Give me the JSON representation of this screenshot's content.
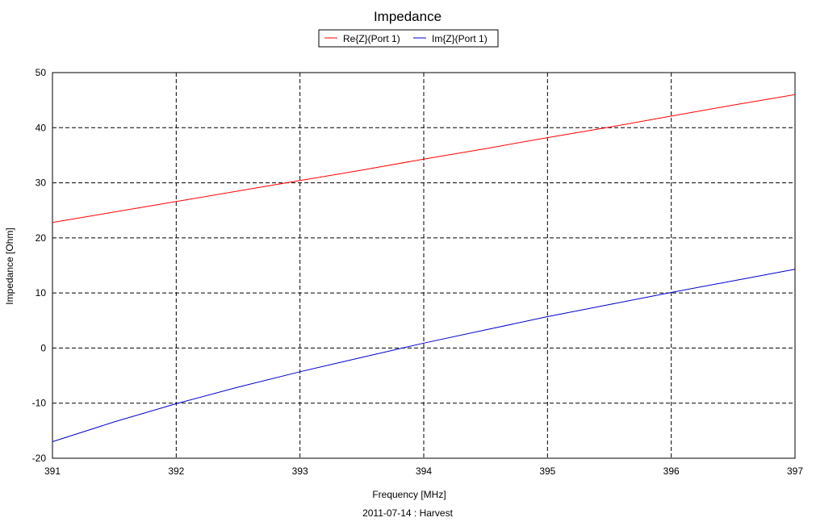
{
  "chart_data": {
    "type": "line",
    "title": "Impedance",
    "xlabel": "Frequency [MHz]",
    "ylabel": "Impedance [Ohm]",
    "footer": "2011-07-14 : Harvest",
    "xlim": [
      391,
      397
    ],
    "ylim": [
      -20,
      50
    ],
    "xticks": [
      391,
      392,
      393,
      394,
      395,
      396,
      397
    ],
    "yticks": [
      -20,
      -10,
      0,
      10,
      20,
      30,
      40,
      50
    ],
    "grid": true,
    "legend_position": "top-center",
    "series": [
      {
        "name": "Re{Z}(Port 1)",
        "color": "#ff0000",
        "x": [
          391,
          391.5,
          392,
          392.5,
          393,
          393.5,
          394,
          394.5,
          395,
          395.5,
          396,
          396.5,
          397
        ],
        "y": [
          22.8,
          24.7,
          26.6,
          28.5,
          30.4,
          32.3,
          34.3,
          36.2,
          38.2,
          40.1,
          42.1,
          44.1,
          46.0
        ]
      },
      {
        "name": "Im{Z}(Port 1)",
        "color": "#0000cc",
        "x": [
          391,
          391.5,
          392,
          392.5,
          393,
          393.5,
          394,
          394.5,
          395,
          395.5,
          396,
          396.5,
          397
        ],
        "y": [
          -17.0,
          -13.4,
          -10.1,
          -7.1,
          -4.3,
          -1.7,
          0.9,
          3.3,
          5.7,
          7.9,
          10.1,
          12.2,
          14.3
        ]
      }
    ]
  }
}
